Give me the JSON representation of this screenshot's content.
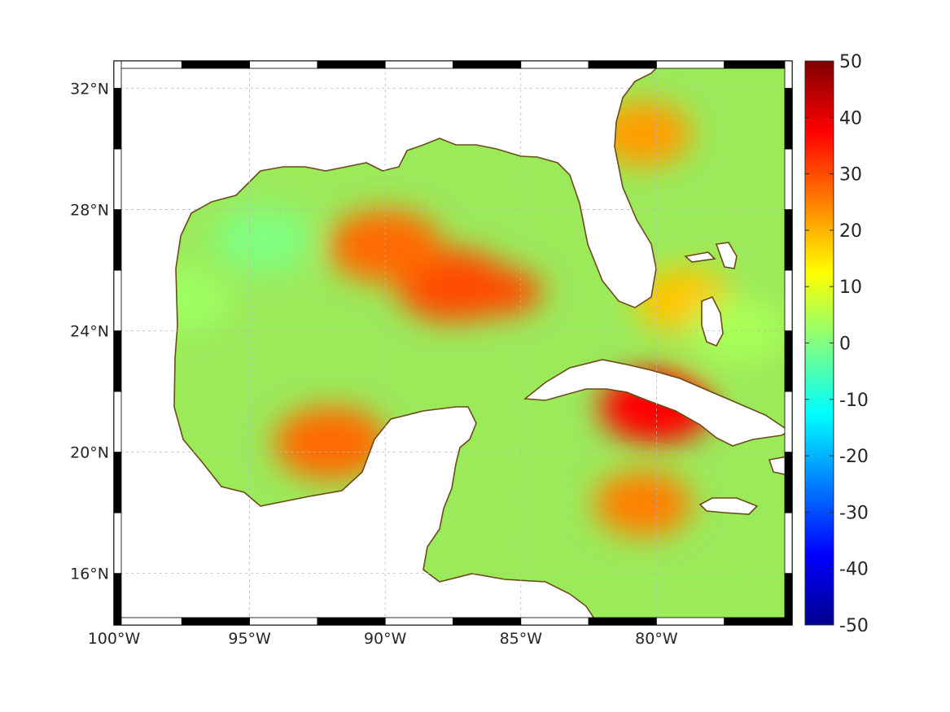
{
  "map": {
    "lon_range": [
      -100,
      -75
    ],
    "lat_range": [
      14.3,
      32.9
    ],
    "lon_ticks": [
      {
        "value": -100,
        "label": "100°W"
      },
      {
        "value": -95,
        "label": "95°W"
      },
      {
        "value": -90,
        "label": "90°W"
      },
      {
        "value": -85,
        "label": "85°W"
      },
      {
        "value": -80,
        "label": "80°W"
      }
    ],
    "lat_ticks": [
      {
        "value": 32,
        "label": "32°N"
      },
      {
        "value": 28,
        "label": "28°N"
      },
      {
        "value": 24,
        "label": "24°N"
      },
      {
        "value": 20,
        "label": "20°N"
      },
      {
        "value": 16,
        "label": "16°N"
      }
    ],
    "grid": true,
    "frame": "black-white-striped",
    "coastline_color": "#6b4a1a",
    "land_color": "#ffffff",
    "field_background": "#9bea5a"
  },
  "colorbar": {
    "min": -50,
    "max": 50,
    "colormap": "jet",
    "ticks": [
      {
        "value": 50,
        "label": "50"
      },
      {
        "value": 40,
        "label": "40"
      },
      {
        "value": 30,
        "label": "30"
      },
      {
        "value": 20,
        "label": "20"
      },
      {
        "value": 10,
        "label": "10"
      },
      {
        "value": 0,
        "label": "0"
      },
      {
        "value": -10,
        "label": "-10"
      },
      {
        "value": -20,
        "label": "-20"
      },
      {
        "value": -30,
        "label": "-30"
      },
      {
        "value": -40,
        "label": "-40"
      },
      {
        "value": -50,
        "label": "-50"
      }
    ]
  },
  "field_features": [
    {
      "name": "northwest-gulf-low",
      "lon": -94.5,
      "lat": 27.0,
      "value": 0
    },
    {
      "name": "western-gulf-low",
      "lon": -97.5,
      "lat": 25.0,
      "value": 3
    },
    {
      "name": "central-gulf-high",
      "lon": -87.5,
      "lat": 25.5,
      "value": 30
    },
    {
      "name": "loop-current-high",
      "lon": -90.0,
      "lat": 26.8,
      "value": 27
    },
    {
      "name": "bay-of-campeche-high",
      "lon": -92.0,
      "lat": 20.3,
      "value": 27
    },
    {
      "name": "cuba-south-high",
      "lon": -80.0,
      "lat": 21.5,
      "value": 37
    },
    {
      "name": "caribbean-high",
      "lon": -80.5,
      "lat": 18.3,
      "value": 25
    },
    {
      "name": "atlantic-florida-high",
      "lon": -80.5,
      "lat": 30.5,
      "value": 22
    },
    {
      "name": "east-florida-strait",
      "lon": -79.0,
      "lat": 25.0,
      "value": 18
    },
    {
      "name": "bahamas-low",
      "lon": -77.0,
      "lat": 24.0,
      "value": 4
    }
  ]
}
